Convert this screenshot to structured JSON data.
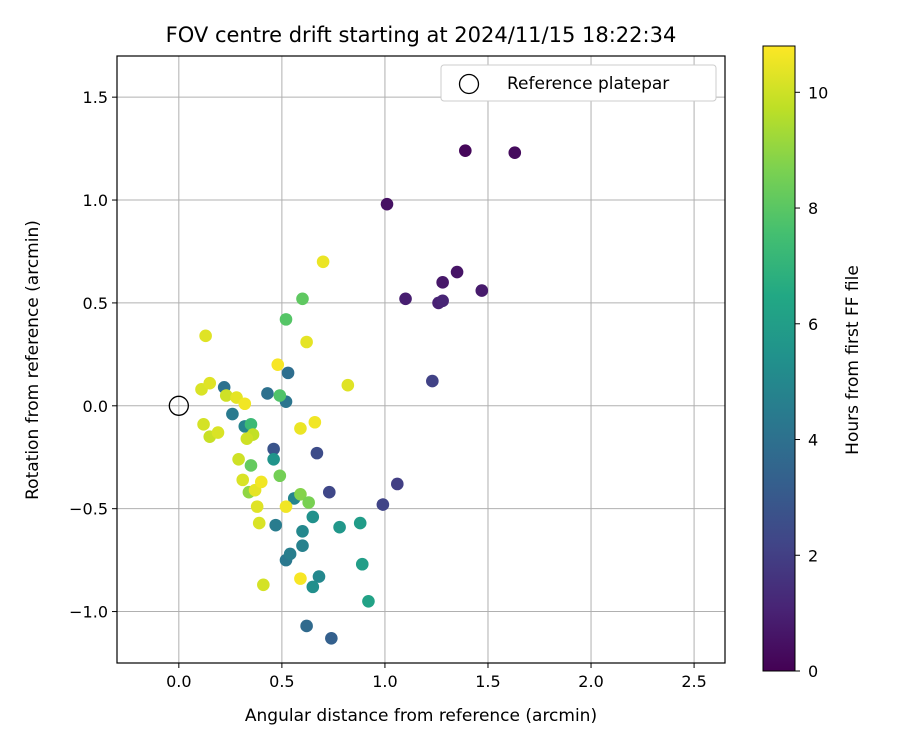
{
  "chart_data": {
    "type": "scatter",
    "title": "FOV centre drift starting at 2024/11/15 18:22:34",
    "xlabel": "Angular distance from reference (arcmin)",
    "ylabel": "Rotation from reference (arcmin)",
    "xlim": [
      -0.3,
      2.65
    ],
    "ylim": [
      -1.25,
      1.7
    ],
    "xticks": [
      "0.0",
      "0.5",
      "1.0",
      "1.5",
      "2.0",
      "2.5"
    ],
    "xtick_values": [
      0,
      0.5,
      1.0,
      1.5,
      2.0,
      2.5
    ],
    "yticks": [
      "1.5",
      "1.0",
      "0.5",
      "0.0",
      "−0.5",
      "−1.0"
    ],
    "ytick_values": [
      1.5,
      1.0,
      0.5,
      0.0,
      -0.5,
      -1.0
    ],
    "grid": true,
    "legend": {
      "position": "top-right",
      "entries": [
        "Reference platepar"
      ]
    },
    "reference_point": {
      "x": 0.0,
      "y": 0.0
    },
    "colorbar": {
      "label": "Hours from first FF file",
      "min": 0,
      "max": 10.8,
      "ticks": [
        "0",
        "2",
        "4",
        "6",
        "8",
        "10"
      ],
      "tick_values": [
        0,
        2,
        4,
        6,
        8,
        10
      ],
      "colormap": "viridis"
    },
    "points": [
      {
        "x": 1.39,
        "y": 1.24,
        "h": 0.2
      },
      {
        "x": 1.63,
        "y": 1.23,
        "h": 0.3
      },
      {
        "x": 1.01,
        "y": 0.98,
        "h": 0.5
      },
      {
        "x": 1.35,
        "y": 0.65,
        "h": 0.6
      },
      {
        "x": 1.28,
        "y": 0.6,
        "h": 0.7
      },
      {
        "x": 1.47,
        "y": 0.56,
        "h": 0.8
      },
      {
        "x": 1.1,
        "y": 0.52,
        "h": 0.9
      },
      {
        "x": 1.26,
        "y": 0.5,
        "h": 1.0
      },
      {
        "x": 1.28,
        "y": 0.51,
        "h": 1.1
      },
      {
        "x": 1.23,
        "y": 0.12,
        "h": 2.1
      },
      {
        "x": 1.06,
        "y": -0.38,
        "h": 2.0
      },
      {
        "x": 0.99,
        "y": -0.48,
        "h": 2.2
      },
      {
        "x": 0.73,
        "y": -0.42,
        "h": 2.3
      },
      {
        "x": 0.67,
        "y": -0.23,
        "h": 2.5
      },
      {
        "x": 0.46,
        "y": -0.21,
        "h": 2.8
      },
      {
        "x": 0.74,
        "y": -1.13,
        "h": 3.3
      },
      {
        "x": 0.62,
        "y": -1.07,
        "h": 3.7
      },
      {
        "x": 0.53,
        "y": 0.16,
        "h": 3.9
      },
      {
        "x": 0.43,
        "y": 0.06,
        "h": 4.0
      },
      {
        "x": 0.52,
        "y": 0.02,
        "h": 4.2
      },
      {
        "x": 0.22,
        "y": 0.09,
        "h": 4.0
      },
      {
        "x": 0.26,
        "y": -0.04,
        "h": 4.4
      },
      {
        "x": 0.32,
        "y": -0.1,
        "h": 4.8
      },
      {
        "x": 0.47,
        "y": -0.58,
        "h": 4.5
      },
      {
        "x": 0.52,
        "y": -0.75,
        "h": 4.3
      },
      {
        "x": 0.54,
        "y": -0.72,
        "h": 4.6
      },
      {
        "x": 0.6,
        "y": -0.68,
        "h": 4.7
      },
      {
        "x": 0.6,
        "y": -0.61,
        "h": 5.0
      },
      {
        "x": 0.56,
        "y": -0.45,
        "h": 4.9
      },
      {
        "x": 0.68,
        "y": -0.83,
        "h": 5.0
      },
      {
        "x": 0.65,
        "y": -0.88,
        "h": 5.3
      },
      {
        "x": 0.65,
        "y": -0.54,
        "h": 5.4
      },
      {
        "x": 0.46,
        "y": -0.26,
        "h": 5.6
      },
      {
        "x": 0.78,
        "y": -0.59,
        "h": 5.7
      },
      {
        "x": 0.88,
        "y": -0.57,
        "h": 5.9
      },
      {
        "x": 0.89,
        "y": -0.77,
        "h": 6.0
      },
      {
        "x": 0.92,
        "y": -0.95,
        "h": 6.2
      },
      {
        "x": 0.35,
        "y": -0.09,
        "h": 7.3
      },
      {
        "x": 0.49,
        "y": 0.05,
        "h": 7.8
      },
      {
        "x": 0.52,
        "y": 0.42,
        "h": 7.9
      },
      {
        "x": 0.6,
        "y": 0.52,
        "h": 8.1
      },
      {
        "x": 0.35,
        "y": -0.29,
        "h": 8.2
      },
      {
        "x": 0.49,
        "y": -0.34,
        "h": 8.5
      },
      {
        "x": 0.59,
        "y": -0.43,
        "h": 8.8
      },
      {
        "x": 0.63,
        "y": -0.47,
        "h": 8.6
      },
      {
        "x": 0.34,
        "y": -0.42,
        "h": 9.0
      },
      {
        "x": 0.36,
        "y": -0.14,
        "h": 9.8
      },
      {
        "x": 0.7,
        "y": 0.7,
        "h": 10.5
      },
      {
        "x": 0.13,
        "y": 0.34,
        "h": 10.3
      },
      {
        "x": 0.62,
        "y": 0.31,
        "h": 10.4
      },
      {
        "x": 0.48,
        "y": 0.2,
        "h": 10.7
      },
      {
        "x": 0.82,
        "y": 0.1,
        "h": 10.3
      },
      {
        "x": 0.11,
        "y": 0.08,
        "h": 10.2
      },
      {
        "x": 0.15,
        "y": 0.11,
        "h": 10.3
      },
      {
        "x": 0.23,
        "y": 0.05,
        "h": 10.0
      },
      {
        "x": 0.28,
        "y": 0.04,
        "h": 10.4
      },
      {
        "x": 0.32,
        "y": 0.01,
        "h": 10.6
      },
      {
        "x": 0.12,
        "y": -0.09,
        "h": 10.1
      },
      {
        "x": 0.15,
        "y": -0.15,
        "h": 9.9
      },
      {
        "x": 0.19,
        "y": -0.13,
        "h": 10.2
      },
      {
        "x": 0.33,
        "y": -0.16,
        "h": 10.0
      },
      {
        "x": 0.59,
        "y": -0.11,
        "h": 10.5
      },
      {
        "x": 0.66,
        "y": -0.08,
        "h": 10.6
      },
      {
        "x": 0.29,
        "y": -0.26,
        "h": 10.0
      },
      {
        "x": 0.31,
        "y": -0.36,
        "h": 10.2
      },
      {
        "x": 0.37,
        "y": -0.41,
        "h": 10.4
      },
      {
        "x": 0.4,
        "y": -0.37,
        "h": 10.6
      },
      {
        "x": 0.38,
        "y": -0.49,
        "h": 10.3
      },
      {
        "x": 0.52,
        "y": -0.49,
        "h": 10.6
      },
      {
        "x": 0.39,
        "y": -0.57,
        "h": 10.2
      },
      {
        "x": 0.59,
        "y": -0.84,
        "h": 10.7
      },
      {
        "x": 0.41,
        "y": -0.87,
        "h": 10.1
      }
    ]
  }
}
